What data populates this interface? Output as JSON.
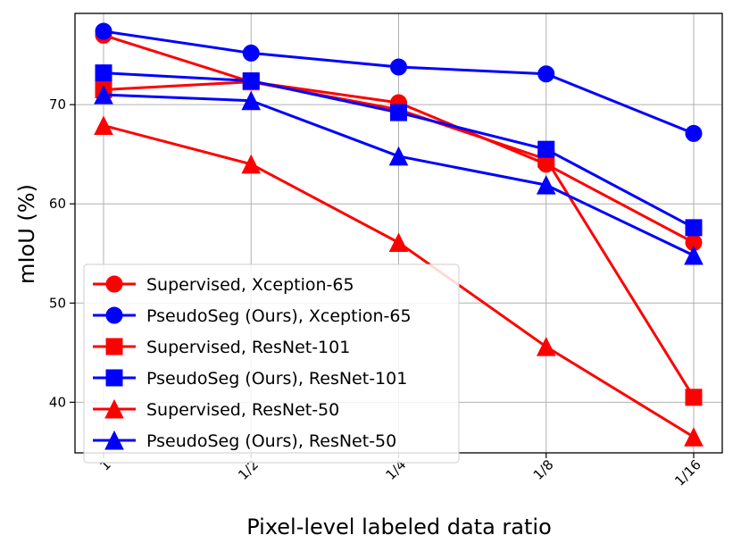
{
  "chart_data": {
    "type": "line",
    "title": "",
    "xlabel": "Pixel-level labeled data ratio",
    "ylabel": "mIoU (%)",
    "x_scale": "log2",
    "x": [
      1,
      0.5,
      0.25,
      0.125,
      0.0625
    ],
    "x_tick_labels": [
      "1",
      "1/2",
      "1/4",
      "1/8",
      "1/16"
    ],
    "ylim": [
      34.9,
      79.2
    ],
    "y_ticks": [
      40,
      50,
      60,
      70
    ],
    "y_tick_labels": [
      "40",
      "50",
      "60",
      "70"
    ],
    "grid": true,
    "legend_position": "lower-left",
    "series": [
      {
        "name": "Supervised, Xception-65",
        "color": "#ff0000",
        "marker": "circle",
        "values": [
          77.0,
          72.3,
          70.2,
          64.0,
          56.1
        ]
      },
      {
        "name": "PseudoSeg (Ours), Xception-65",
        "color": "#0000ff",
        "marker": "circle",
        "values": [
          77.4,
          75.2,
          73.8,
          73.1,
          67.1
        ]
      },
      {
        "name": "Supervised, ResNet-101",
        "color": "#ff0000",
        "marker": "square",
        "values": [
          71.5,
          72.3,
          69.5,
          64.5,
          40.5
        ]
      },
      {
        "name": "PseudoSeg (Ours), ResNet-101",
        "color": "#0000ff",
        "marker": "square",
        "values": [
          73.2,
          72.4,
          69.2,
          65.5,
          57.6
        ]
      },
      {
        "name": "Supervised, ResNet-50",
        "color": "#ff0000",
        "marker": "triangle",
        "values": [
          67.9,
          64.0,
          56.1,
          45.6,
          36.5
        ]
      },
      {
        "name": "PseudoSeg (Ours), ResNet-50",
        "color": "#0000ff",
        "marker": "triangle",
        "values": [
          71.0,
          70.4,
          64.8,
          61.9,
          54.8
        ]
      }
    ]
  }
}
